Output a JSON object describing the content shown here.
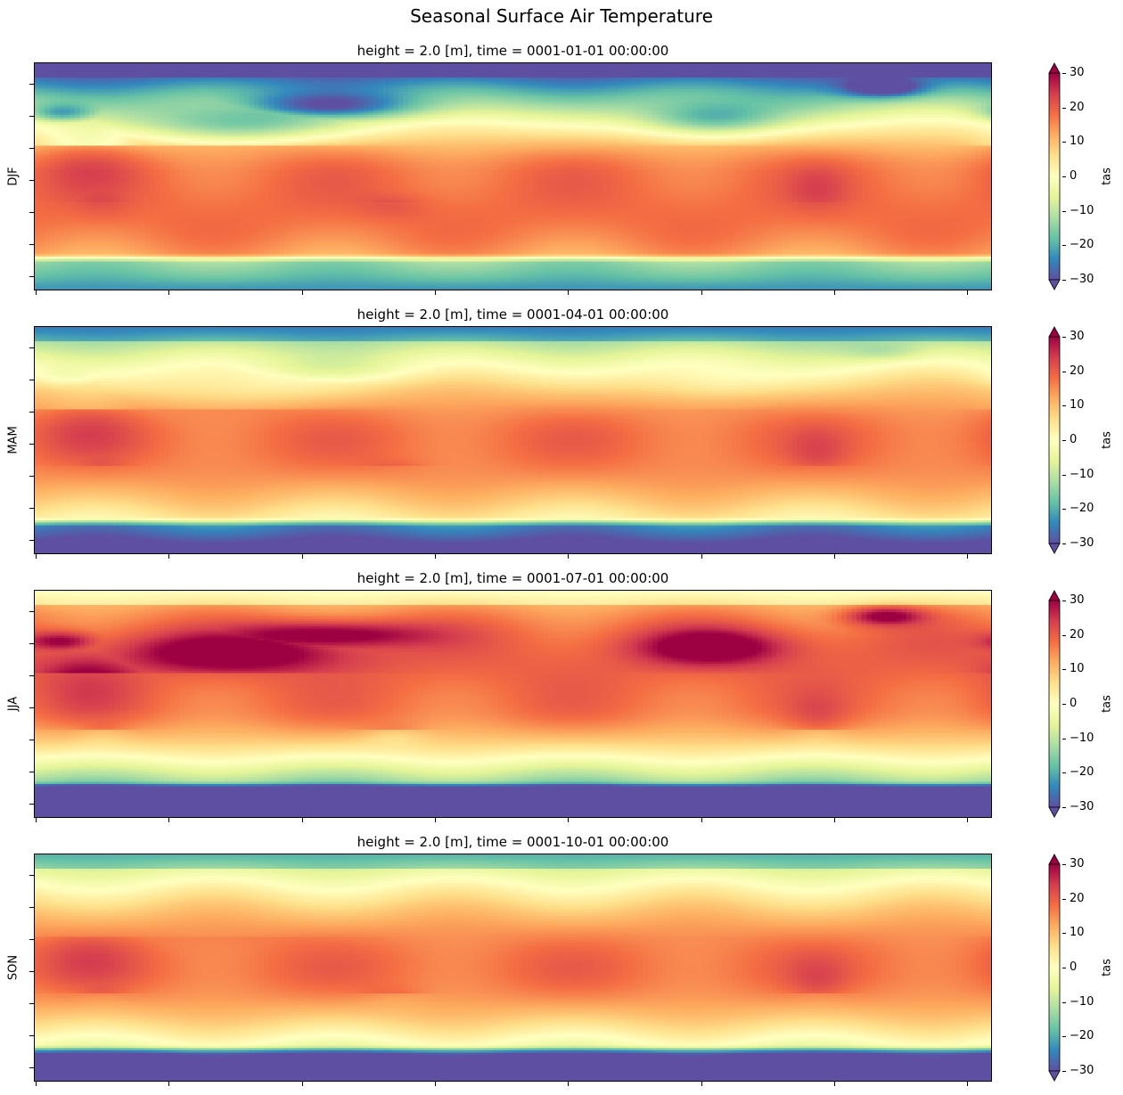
{
  "figure": {
    "title": "Seasonal Surface Air Temperature"
  },
  "chart_data": [
    {
      "type": "heatmap",
      "title": "height = 2.0 [m], time = 0001-01-01 00:00:00",
      "ylabel": "DJF",
      "colorbar_label": "tas",
      "colormap": "Spectral_r",
      "vmin": -30,
      "vmax": 30,
      "colorbar_ticks": [
        "30",
        "20",
        "10",
        "0",
        "−10",
        "−20",
        "−30"
      ],
      "season": "DJF"
    },
    {
      "type": "heatmap",
      "title": "height = 2.0 [m], time = 0001-04-01 00:00:00",
      "ylabel": "MAM",
      "colorbar_label": "tas",
      "colormap": "Spectral_r",
      "vmin": -30,
      "vmax": 30,
      "colorbar_ticks": [
        "30",
        "20",
        "10",
        "0",
        "−10",
        "−20",
        "−30"
      ],
      "season": "MAM"
    },
    {
      "type": "heatmap",
      "title": "height = 2.0 [m], time = 0001-07-01 00:00:00",
      "ylabel": "JJA",
      "colorbar_label": "tas",
      "colormap": "Spectral_r",
      "vmin": -30,
      "vmax": 30,
      "colorbar_ticks": [
        "30",
        "20",
        "10",
        "0",
        "−10",
        "−20",
        "−30"
      ],
      "season": "JJA"
    },
    {
      "type": "heatmap",
      "title": "height = 2.0 [m], time = 0001-10-01 00:00:00",
      "ylabel": "SON",
      "colorbar_label": "tas",
      "colormap": "Spectral_r",
      "vmin": -30,
      "vmax": 30,
      "colorbar_ticks": [
        "30",
        "20",
        "10",
        "0",
        "−10",
        "−20",
        "−30"
      ],
      "season": "SON"
    }
  ],
  "colors": {
    "palette": [
      "#5e4fa2",
      "#3288bd",
      "#66c2a5",
      "#abdda4",
      "#e6f598",
      "#ffffbf",
      "#fee08b",
      "#fdae61",
      "#f46d43",
      "#d53e4f",
      "#9e0142"
    ]
  }
}
